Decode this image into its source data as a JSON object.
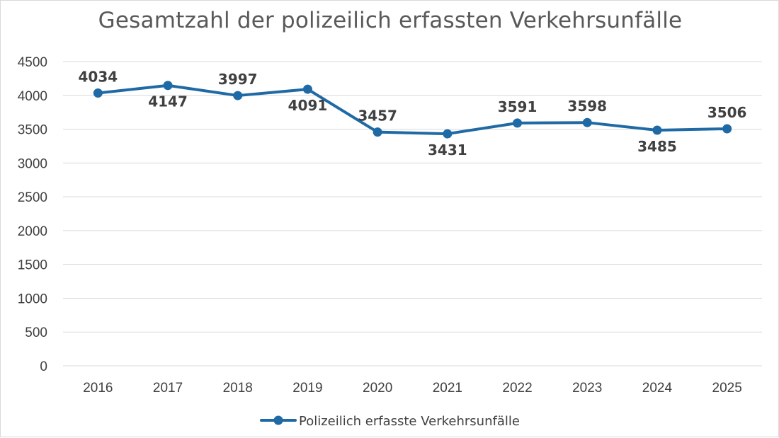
{
  "chart_data": {
    "type": "line",
    "title": "Gesamtzahl der polizeilich erfassten Verkehrsunfälle",
    "xlabel": "",
    "ylabel": "",
    "categories": [
      "2016",
      "2017",
      "2018",
      "2019",
      "2020",
      "2021",
      "2022",
      "2023",
      "2024",
      "2025"
    ],
    "series": [
      {
        "name": "Polizeilich erfasste Verkehrsunfälle",
        "values": [
          4034,
          4147,
          3997,
          4091,
          3457,
          3431,
          3591,
          3598,
          3485,
          3506
        ],
        "color": "#1f6aa5"
      }
    ],
    "ylim": [
      0,
      4500
    ],
    "yticks": [
      0,
      500,
      1000,
      1500,
      2000,
      2500,
      3000,
      3500,
      4000,
      4500
    ],
    "grid": true,
    "legend_position": "bottom",
    "data_labels": true,
    "data_label_placement": [
      "above",
      "below",
      "above",
      "below",
      "above",
      "below",
      "above",
      "above",
      "below",
      "above"
    ]
  }
}
